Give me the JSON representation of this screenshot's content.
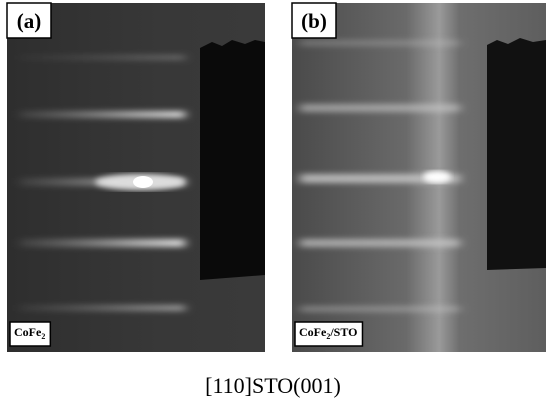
{
  "panels": [
    {
      "label": "(a)",
      "caption": [
        {
          "text": "CoFe"
        },
        {
          "text": "2",
          "sub": true
        }
      ]
    },
    {
      "label": "(b)",
      "caption": [
        {
          "text": "CoFe"
        },
        {
          "text": "2",
          "sub": true
        },
        {
          "text": "/STO"
        }
      ]
    }
  ],
  "footer": "[110]STO(001)"
}
